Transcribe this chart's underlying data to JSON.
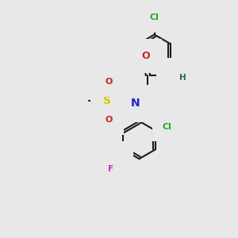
{
  "background_color": "#e8e8e8",
  "bond_color": "#1a1a1a",
  "bond_lw": 1.5,
  "atom_colors": {
    "N": "#2222cc",
    "O": "#cc2222",
    "S": "#cccc00",
    "Cl": "#22aa22",
    "F": "#cc22cc",
    "H": "#226666"
  },
  "fs": 9.0,
  "fs_sm": 7.5
}
